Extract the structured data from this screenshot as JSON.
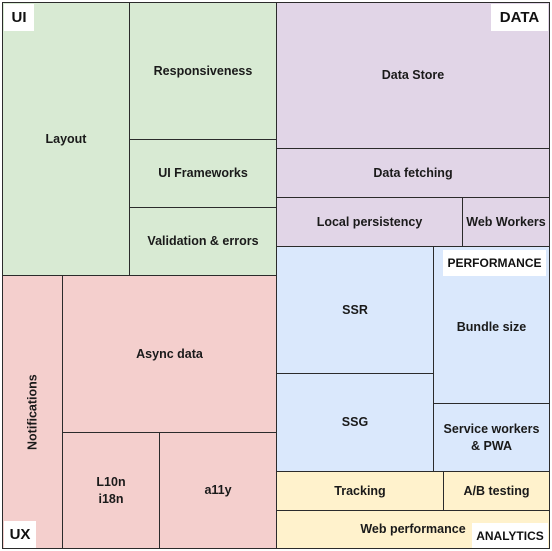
{
  "sections": {
    "ui": "UI",
    "data": "DATA",
    "performance": "PERFORMANCE",
    "ux": "UX",
    "analytics": "ANALYTICS"
  },
  "blocks": {
    "layout": "Layout",
    "responsiveness": "Responsiveness",
    "ui_frameworks": "UI Frameworks",
    "validation": "Validation & errors",
    "data_store": "Data Store",
    "data_fetching": "Data fetching",
    "local_persistency": "Local persistency",
    "web_workers": "Web Workers",
    "ssr": "SSR",
    "bundle_size": "Bundle size",
    "ssg": "SSG",
    "service_workers": "Service workers\n& PWA",
    "notifications": "Notifications",
    "async_data": "Async data",
    "l10n": "L10n\ni18n",
    "a11y": "a11y",
    "tracking": "Tracking",
    "ab_testing": "A/B testing",
    "web_performance": "Web performance"
  },
  "colors": {
    "ui": "#d8ead3",
    "data": "#e1d5e7",
    "performance": "#dae8fc",
    "ux": "#f4cfcd",
    "analytics": "#fff2cc",
    "border": "#2b2b2b"
  }
}
